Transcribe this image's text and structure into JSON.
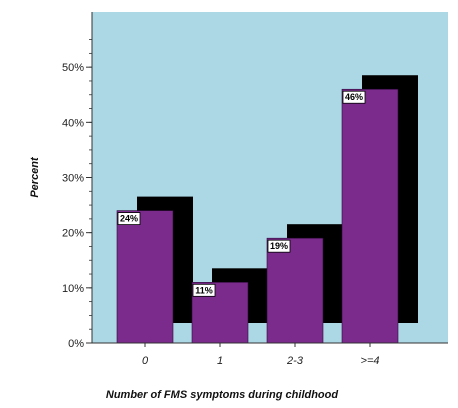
{
  "chart_data": {
    "type": "bar",
    "title": "",
    "xlabel": "Number of FMS symptoms during childhood",
    "ylabel": "Percent",
    "categories": [
      "0",
      "1",
      "2-3",
      ">=4"
    ],
    "values": [
      24,
      11,
      19,
      46
    ],
    "data_labels": [
      "24%",
      "11%",
      "19%",
      "46%"
    ],
    "ylim": [
      0,
      60
    ],
    "yticks": [
      {
        "value": 0,
        "label": "0%"
      },
      {
        "value": 10,
        "label": "10%"
      },
      {
        "value": 20,
        "label": "20%"
      },
      {
        "value": 30,
        "label": "30%"
      },
      {
        "value": 40,
        "label": "40%"
      },
      {
        "value": 50,
        "label": "50%"
      }
    ],
    "grid": false,
    "legend": "none",
    "style": "3d-shadow",
    "colors": {
      "plot_background": "#acd8e6",
      "bar_fill": "#7a2b8c",
      "bar_shadow": "#000000",
      "label_background": "#ffffff"
    }
  }
}
